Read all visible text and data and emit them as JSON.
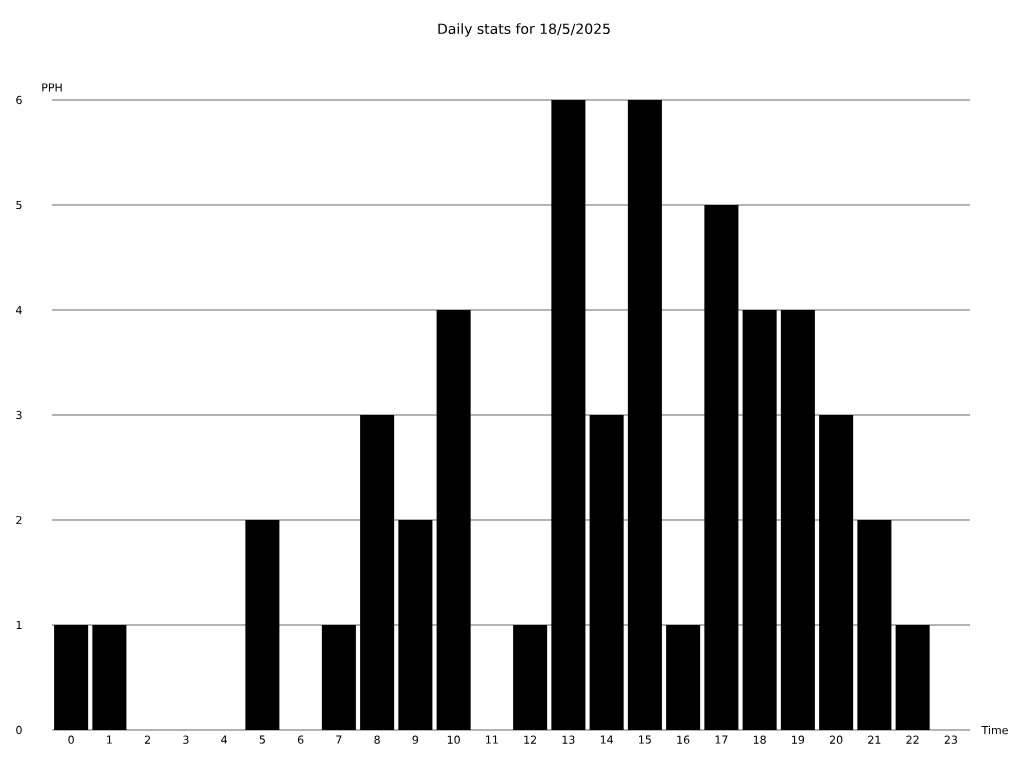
{
  "chart_data": {
    "type": "bar",
    "title": "Daily stats for 18/5/2025",
    "xlabel": "Time",
    "ylabel": "PPH",
    "categories": [
      "0",
      "1",
      "2",
      "3",
      "4",
      "5",
      "6",
      "7",
      "8",
      "9",
      "10",
      "11",
      "12",
      "13",
      "14",
      "15",
      "16",
      "17",
      "18",
      "19",
      "20",
      "21",
      "22",
      "23"
    ],
    "values": [
      1,
      1,
      0,
      0,
      0,
      2,
      0,
      1,
      3,
      2,
      4,
      0,
      1,
      6,
      3,
      6,
      1,
      5,
      4,
      4,
      3,
      2,
      1,
      0
    ],
    "color": "#000000",
    "ylim": [
      0,
      6
    ],
    "yticks": [
      0,
      1,
      2,
      3,
      4,
      5,
      6
    ],
    "grid": "y"
  }
}
